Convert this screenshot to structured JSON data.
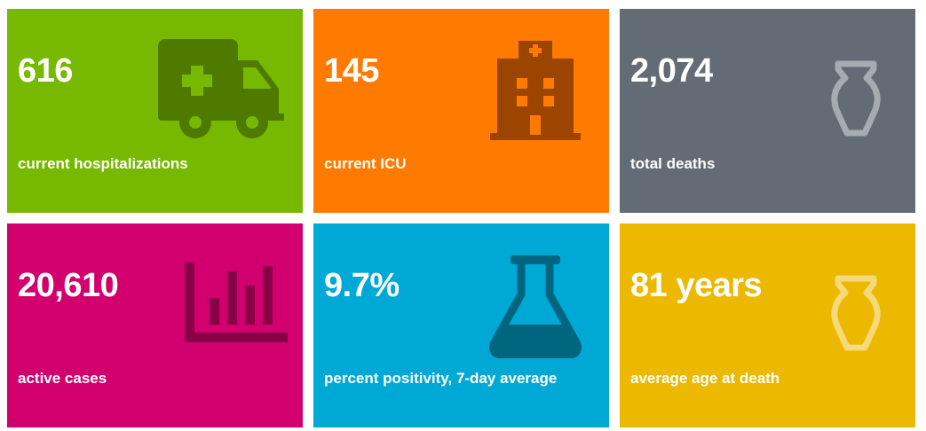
{
  "tiles": [
    {
      "value": "616",
      "label": "current hospitalizations",
      "color": "#77b800",
      "icon": "ambulance-icon"
    },
    {
      "value": "145",
      "label": "current ICU",
      "color": "#ff7a00",
      "icon": "hospital-icon"
    },
    {
      "value": "2,074",
      "label": "total deaths",
      "color": "#636b74",
      "icon": "urn-icon"
    },
    {
      "value": "20,610",
      "label": "active cases",
      "color": "#d1006e",
      "icon": "bar-chart-icon"
    },
    {
      "value": "9.7%",
      "label": "percent positivity, 7-day average",
      "color": "#00a8d6",
      "icon": "flask-icon"
    },
    {
      "value": "81 years",
      "label": "average age at death",
      "color": "#ecb800",
      "icon": "urn-icon"
    }
  ]
}
